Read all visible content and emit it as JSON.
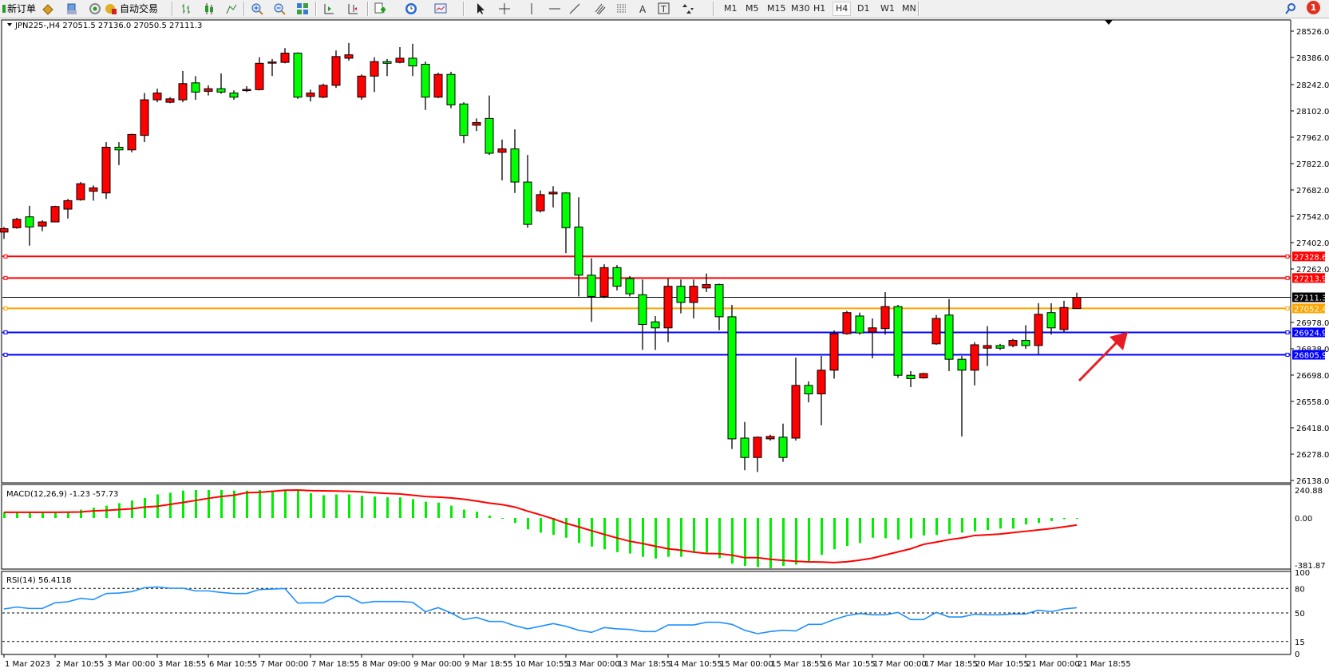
{
  "toolbar": {
    "new_order": "新订单",
    "auto_trading": "自动交易",
    "timeframes": [
      "M1",
      "M5",
      "M15",
      "M30",
      "H1",
      "H4",
      "D1",
      "W1",
      "MN"
    ],
    "active_timeframe": "H4",
    "notification_count": "1",
    "icons": [
      "metaquotes-folder-icon",
      "market-watch-icon",
      "signals-icon",
      "auto-trading-icon",
      "bar-chart-icon",
      "candlestick-icon",
      "line-chart-icon",
      "zoom-in-icon",
      "zoom-out-icon",
      "tile-windows-icon",
      "chart-shift-icon",
      "autoscroll-icon",
      "indicators-icon",
      "periods-icon",
      "templates-icon",
      "cursor-icon",
      "crosshair-icon",
      "vertical-line-icon",
      "horizontal-line-icon",
      "trendline-icon",
      "fibonacci-channel-icon",
      "fibonacci-icon",
      "text-icon",
      "text-label-icon",
      "arrows-icon",
      "search-icon",
      "notification-icon"
    ]
  },
  "chart": {
    "header": "JPN225-,H4  27051.5 27136.0 27050.5 27111.3",
    "colors": {
      "bull": "#ff0000",
      "bear": "#00ff00",
      "macd_hist": "#00ee00",
      "signal": "#ff0000",
      "rsi": "#1e90ff"
    },
    "price_ticks": [
      "28526.0",
      "28386.0",
      "28242.0",
      "28102.0",
      "27962.0",
      "27822.0",
      "27682.0",
      "27542.0",
      "27402.0",
      "27262.0",
      "26978.0",
      "26838.0",
      "26698.0",
      "26558.0",
      "26418.0",
      "26278.0",
      "26138.0"
    ],
    "hlines": [
      {
        "price": 27328.6,
        "label": "27328.6",
        "color": "#ff0000"
      },
      {
        "price": 27213.9,
        "label": "27213.9",
        "color": "#ff0000"
      },
      {
        "price": 27111.3,
        "label": "27111.3",
        "color": "#000000"
      },
      {
        "price": 27052.4,
        "label": "27052.4",
        "color": "#ffa500"
      },
      {
        "price": 26924.9,
        "label": "26924.9",
        "color": "#0000ff"
      },
      {
        "price": 26805.9,
        "label": "26805.9",
        "color": "#0000ff"
      }
    ],
    "annotation": {
      "type": "arrow",
      "color": "#e81c24",
      "direction": "up-right"
    }
  },
  "chart_data": [
    {
      "type": "candlestick",
      "title": "JPN225-,H4",
      "ylim": [
        26138,
        28526
      ],
      "ohlc": [
        [
          27458,
          27485,
          27422,
          27476
        ],
        [
          27481,
          27534,
          27476,
          27526
        ],
        [
          27539,
          27598,
          27386,
          27485
        ],
        [
          27490,
          27521,
          27463,
          27512
        ],
        [
          27512,
          27598,
          27512,
          27594
        ],
        [
          27580,
          27634,
          27530,
          27625
        ],
        [
          27630,
          27724,
          27625,
          27715
        ],
        [
          27675,
          27706,
          27625,
          27693
        ],
        [
          27666,
          27936,
          27634,
          27909
        ],
        [
          27909,
          27936,
          27814,
          27895
        ],
        [
          27895,
          27981,
          27882,
          27977
        ],
        [
          27972,
          28197,
          27936,
          28161
        ],
        [
          28161,
          28220,
          28148,
          28197
        ],
        [
          28148,
          28175,
          28143,
          28166
        ],
        [
          28161,
          28314,
          28148,
          28247
        ],
        [
          28251,
          28287,
          28161,
          28202
        ],
        [
          28206,
          28238,
          28184,
          28220
        ],
        [
          28220,
          28301,
          28193,
          28202
        ],
        [
          28197,
          28211,
          28161,
          28175
        ],
        [
          28213,
          28233,
          28202,
          28216
        ],
        [
          28215,
          28387,
          28211,
          28355
        ],
        [
          28360,
          28378,
          28287,
          28362
        ],
        [
          28360,
          28436,
          28355,
          28409
        ],
        [
          28409,
          28413,
          28166,
          28175
        ],
        [
          28179,
          28215,
          28152,
          28197
        ],
        [
          28175,
          28247,
          28170,
          28238
        ],
        [
          28238,
          28423,
          28224,
          28391
        ],
        [
          28382,
          28463,
          28369,
          28400
        ],
        [
          28175,
          28296,
          28161,
          28287
        ],
        [
          28287,
          28387,
          28202,
          28364
        ],
        [
          28364,
          28378,
          28287,
          28355
        ],
        [
          28360,
          28441,
          28355,
          28382
        ],
        [
          28382,
          28459,
          28287,
          28341
        ],
        [
          28350,
          28364,
          28107,
          28175
        ],
        [
          28175,
          28305,
          28170,
          28296
        ],
        [
          28296,
          28310,
          28116,
          28134
        ],
        [
          28139,
          28148,
          27931,
          27972
        ],
        [
          28026,
          28062,
          27995,
          28040
        ],
        [
          28062,
          28184,
          27868,
          27877
        ],
        [
          27882,
          27950,
          27733,
          27900
        ],
        [
          27900,
          28004,
          27666,
          27724
        ],
        [
          27724,
          27868,
          27481,
          27499
        ],
        [
          27571,
          27679,
          27562,
          27657
        ],
        [
          27661,
          27702,
          27589,
          27670
        ],
        [
          27666,
          27670,
          27346,
          27481
        ],
        [
          27485,
          27643,
          27116,
          27229
        ],
        [
          27229,
          27319,
          26981,
          27116
        ],
        [
          27116,
          27287,
          27107,
          27269
        ],
        [
          27269,
          27283,
          27148,
          27170
        ],
        [
          27211,
          27224,
          27116,
          27130
        ],
        [
          27125,
          27206,
          26832,
          26967
        ],
        [
          26981,
          27012,
          26832,
          26949
        ],
        [
          26949,
          27211,
          26873,
          27170
        ],
        [
          27170,
          27206,
          27026,
          27084
        ],
        [
          27084,
          27206,
          26999,
          27170
        ],
        [
          27161,
          27238,
          27139,
          27179
        ],
        [
          27179,
          27184,
          26936,
          27008
        ],
        [
          27008,
          27071,
          26305,
          26359
        ],
        [
          26363,
          26449,
          26192,
          26260
        ],
        [
          26260,
          26372,
          26183,
          26368
        ],
        [
          26359,
          26381,
          26350,
          26372
        ],
        [
          26368,
          26440,
          26237,
          26260
        ],
        [
          26363,
          26791,
          26350,
          26643
        ],
        [
          26643,
          26665,
          26553,
          26598
        ],
        [
          26598,
          26800,
          26431,
          26724
        ],
        [
          26724,
          26936,
          26679,
          26918
        ],
        [
          26918,
          27039,
          26913,
          27030
        ],
        [
          27012,
          27030,
          26913,
          26922
        ],
        [
          26927,
          26999,
          26787,
          26949
        ],
        [
          26945,
          27139,
          26913,
          27062
        ],
        [
          27062,
          27071,
          26683,
          26697
        ],
        [
          26697,
          26719,
          26634,
          26679
        ],
        [
          26683,
          26710,
          26679,
          26706
        ],
        [
          26864,
          27017,
          26859,
          26999
        ],
        [
          27017,
          27102,
          26719,
          26782
        ],
        [
          26782,
          26800,
          26372,
          26724
        ],
        [
          26724,
          26873,
          26643,
          26859
        ],
        [
          26841,
          26958,
          26746,
          26855
        ],
        [
          26855,
          26864,
          26832,
          26841
        ],
        [
          26855,
          26891,
          26846,
          26882
        ],
        [
          26882,
          26963,
          26837,
          26855
        ],
        [
          26855,
          27080,
          26810,
          27021
        ],
        [
          27030,
          27080,
          26913,
          26949
        ],
        [
          26940,
          27093,
          26927,
          27057
        ],
        [
          27051.5,
          27136.0,
          27050.5,
          27111.3
        ]
      ],
      "x_tick_labels": [
        "1 Mar 2023",
        "2 Mar 10:55",
        "3 Mar 00:00",
        "3 Mar 18:55",
        "6 Mar 10:55",
        "7 Mar 00:00",
        "7 Mar 18:55",
        "8 Mar 09:00",
        "9 Mar 00:00",
        "9 Mar 18:55",
        "10 Mar 10:55",
        "13 Mar 00:00",
        "13 Mar 18:55",
        "14 Mar 10:55",
        "15 Mar 00:00",
        "15 Mar 18:55",
        "16 Mar 10:55",
        "17 Mar 00:00",
        "17 Mar 18:55",
        "20 Mar 10:55",
        "21 Mar 00:00",
        "21 Mar 18:55"
      ],
      "x_tick_every": 4
    },
    {
      "type": "bar+line",
      "title": "MACD(12,26,9) -1.23 -57.73",
      "ylim": [
        -381.87,
        240.88
      ],
      "y_tick_labels": [
        "240.88",
        "0.00",
        "-381.87"
      ],
      "histogram": [
        49,
        49,
        49,
        49,
        49,
        55,
        72,
        88,
        106,
        128,
        151,
        173,
        203,
        218,
        236,
        241,
        241,
        241,
        236,
        236,
        241,
        230,
        241,
        241,
        214,
        196,
        203,
        203,
        191,
        185,
        178,
        178,
        162,
        140,
        133,
        106,
        72,
        54,
        20,
        -2,
        -40,
        -92,
        -119,
        -137,
        -160,
        -203,
        -232,
        -254,
        -277,
        -288,
        -315,
        -329,
        -315,
        -315,
        -281,
        -281,
        -326,
        -371,
        -389,
        -398,
        -407,
        -389,
        -378,
        -356,
        -299,
        -254,
        -227,
        -203,
        -160,
        -164,
        -176,
        -164,
        -142,
        -137,
        -130,
        -119,
        -108,
        -97,
        -86,
        -86,
        -52,
        -40,
        -25,
        -10,
        -1.23
      ],
      "signal": [
        49,
        49,
        49,
        49,
        49,
        50,
        52,
        61,
        65,
        72,
        79,
        94,
        101,
        117,
        133,
        151,
        169,
        185,
        196,
        218,
        221,
        230,
        239,
        241,
        236,
        234,
        232,
        230,
        225,
        218,
        212,
        207,
        196,
        185,
        180,
        173,
        162,
        146,
        128,
        115,
        94,
        59,
        27,
        -7,
        -43,
        -72,
        -103,
        -133,
        -162,
        -189,
        -207,
        -229,
        -250,
        -261,
        -277,
        -288,
        -290,
        -302,
        -322,
        -322,
        -335,
        -344,
        -351,
        -356,
        -358,
        -362,
        -355,
        -342,
        -326,
        -300,
        -275,
        -250,
        -214,
        -196,
        -176,
        -162,
        -142,
        -137,
        -130,
        -119,
        -108,
        -97,
        -86,
        -72,
        -57.73
      ]
    },
    {
      "type": "line",
      "title": "RSI(14) 56.4118",
      "ylim": [
        0,
        100
      ],
      "levels": [
        80,
        50,
        15
      ],
      "y_tick_labels": [
        "100",
        "80",
        "50",
        "15",
        "0"
      ],
      "values": [
        54.9,
        57.2,
        55.5,
        55.5,
        62.4,
        63.7,
        67.9,
        66.3,
        73.8,
        74.4,
        76.1,
        80.9,
        81.9,
        80.3,
        80.3,
        77.0,
        77.0,
        75.1,
        73.8,
        73.8,
        78.7,
        79.3,
        79.9,
        62.1,
        62.4,
        62.4,
        70.2,
        70.2,
        62.1,
        64.0,
        64.0,
        64.0,
        63.0,
        51.6,
        56.5,
        50.0,
        41.9,
        44.5,
        39.6,
        39.6,
        34.4,
        30.5,
        33.7,
        37.0,
        33.7,
        28.8,
        26.2,
        32.1,
        30.5,
        29.8,
        27.2,
        27.2,
        35.3,
        35.3,
        35.3,
        38.6,
        38.6,
        36.0,
        28.8,
        24.6,
        27.2,
        28.8,
        27.9,
        36.0,
        36.0,
        41.9,
        46.7,
        49.3,
        47.7,
        47.7,
        50.7,
        41.9,
        41.9,
        50.7,
        45.1,
        45.1,
        48.4,
        47.7,
        47.7,
        48.7,
        48.7,
        53.3,
        51.6,
        54.9,
        56.4118
      ]
    }
  ]
}
